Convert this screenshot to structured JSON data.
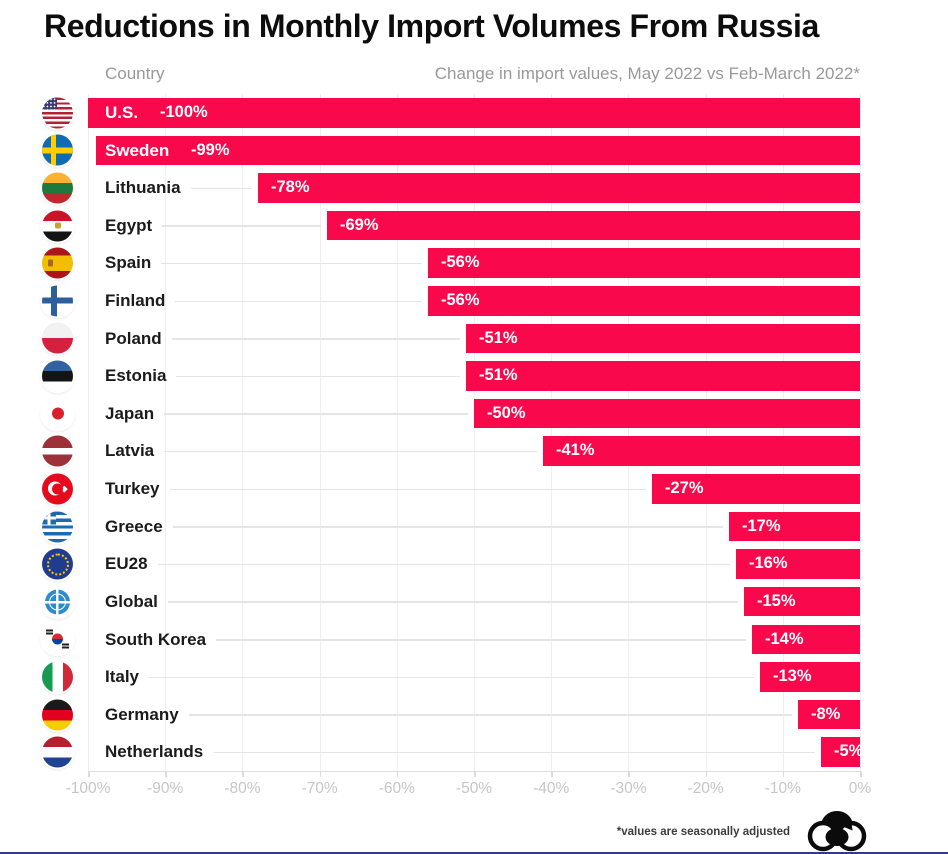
{
  "title": "Reductions in Monthly Import Volumes From Russia",
  "header": {
    "country_label": "Country",
    "change_label": "Change in import values, May 2022 vs Feb-March 2022*"
  },
  "footnote": "*values are seasonally adjusted",
  "colors": {
    "bar": "#F9084B",
    "title_text": "#0D0D0D",
    "country_text": "#1B1B1B",
    "header_gray": "#999999",
    "tick_gray": "#C6C6C6",
    "gridline": "#EFEFEF",
    "leader_line": "#E5E5E5",
    "value_text": "#FFFFFF"
  },
  "chart_data": {
    "type": "bar",
    "orientation": "horizontal",
    "title": "Reductions in Monthly Import Volumes From Russia",
    "xlabel": "Change in import values, May 2022 vs Feb-March 2022*",
    "ylabel": "Country",
    "xlim": [
      -100,
      0
    ],
    "grid": true,
    "legend_position": "none",
    "x_ticks": [
      "-100%",
      "-90%",
      "-80%",
      "-70%",
      "-60%",
      "-50%",
      "-40%",
      "-30%",
      "-20%",
      "-10%",
      "0%"
    ],
    "rows": [
      {
        "country": "U.S.",
        "flag": "us",
        "value": -100,
        "label": "-100%",
        "name_inside_bar": true
      },
      {
        "country": "Sweden",
        "flag": "sweden",
        "value": -99,
        "label": "-99%",
        "name_inside_bar": true
      },
      {
        "country": "Lithuania",
        "flag": "lithuania",
        "value": -78,
        "label": "-78%",
        "name_inside_bar": false
      },
      {
        "country": "Egypt",
        "flag": "egypt",
        "value": -69,
        "label": "-69%",
        "name_inside_bar": false
      },
      {
        "country": "Spain",
        "flag": "spain",
        "value": -56,
        "label": "-56%",
        "name_inside_bar": false
      },
      {
        "country": "Finland",
        "flag": "finland",
        "value": -56,
        "label": "-56%",
        "name_inside_bar": false
      },
      {
        "country": "Poland",
        "flag": "poland",
        "value": -51,
        "label": "-51%",
        "name_inside_bar": false
      },
      {
        "country": "Estonia",
        "flag": "estonia",
        "value": -51,
        "label": "-51%",
        "name_inside_bar": false
      },
      {
        "country": "Japan",
        "flag": "japan",
        "value": -50,
        "label": "-50%",
        "name_inside_bar": false
      },
      {
        "country": "Latvia",
        "flag": "latvia",
        "value": -41,
        "label": "-41%",
        "name_inside_bar": false
      },
      {
        "country": "Turkey",
        "flag": "turkey",
        "value": -27,
        "label": "-27%",
        "name_inside_bar": false
      },
      {
        "country": "Greece",
        "flag": "greece",
        "value": -17,
        "label": "-17%",
        "name_inside_bar": false
      },
      {
        "country": "EU28",
        "flag": "eu",
        "value": -16,
        "label": "-16%",
        "name_inside_bar": false
      },
      {
        "country": "Global",
        "flag": "global",
        "value": -15,
        "label": "-15%",
        "name_inside_bar": false
      },
      {
        "country": "South Korea",
        "flag": "south-korea",
        "value": -14,
        "label": "-14%",
        "name_inside_bar": false
      },
      {
        "country": "Italy",
        "flag": "italy",
        "value": -13,
        "label": "-13%",
        "name_inside_bar": false
      },
      {
        "country": "Germany",
        "flag": "germany",
        "value": -8,
        "label": "-8%",
        "name_inside_bar": false
      },
      {
        "country": "Netherlands",
        "flag": "netherlands",
        "value": -5,
        "label": "-5%",
        "name_inside_bar": false
      }
    ]
  }
}
